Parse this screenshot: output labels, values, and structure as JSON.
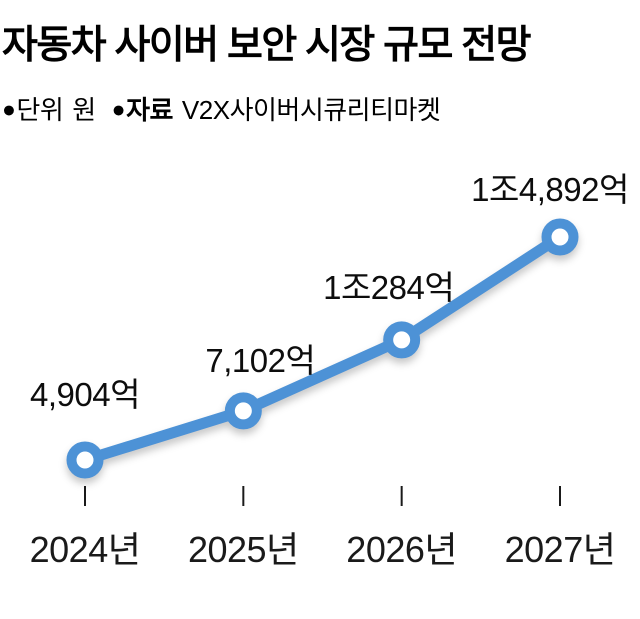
{
  "header": {
    "title": "자동차 사이버 보안 시장 규모 전망",
    "unit": {
      "bullet": "●",
      "label": "단위",
      "value": "원"
    },
    "source": {
      "bullet": "●",
      "label": "자료",
      "value": "V2X사이버시큐리티마켓"
    }
  },
  "chart_data": {
    "type": "line",
    "title": "자동차 사이버 보안 시장 규모 전망",
    "unit": "원",
    "source": "V2X사이버시큐리티마켓",
    "categories": [
      "2024년",
      "2025년",
      "2026년",
      "2027년"
    ],
    "values": [
      4904,
      7102,
      10284,
      14892
    ],
    "value_unit": "억 원",
    "point_labels": [
      "4,904억",
      "7,102억",
      "1조284억",
      "1조4,892억"
    ],
    "series": [
      {
        "name": "시장 규모",
        "values": [
          4904,
          7102,
          10284,
          14892
        ]
      }
    ],
    "series_color": "#4d92d6",
    "marker": "open-circle",
    "marker_fill": "#ffffff",
    "tick_color": "#1a1a1a",
    "text_color": "#0d0d0d",
    "grid": false,
    "legend": "none",
    "y_axis": "hidden",
    "ylim": [
      4904,
      14892
    ]
  }
}
